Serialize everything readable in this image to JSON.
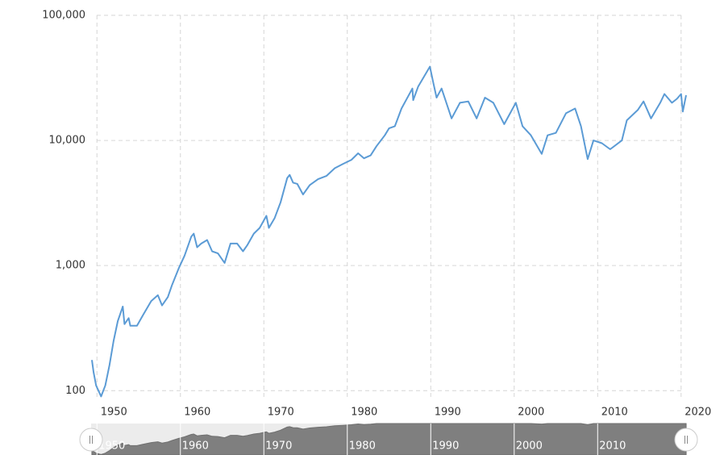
{
  "chart_data": {
    "type": "line",
    "log_scale": true,
    "grid": true,
    "xlim": [
      1949.3,
      2020.6
    ],
    "ylim": [
      84,
      100000
    ],
    "xticks": [
      1950,
      1960,
      1970,
      1980,
      1990,
      2000,
      2010,
      2020
    ],
    "yticks": [
      {
        "value": 100,
        "label": "100"
      },
      {
        "value": 1000,
        "label": "1,000"
      },
      {
        "value": 10000,
        "label": "10,000"
      },
      {
        "value": 100000,
        "label": "100,000"
      }
    ],
    "series": [
      {
        "color": "#5b9bd5",
        "x": [
          1949.4,
          1949.6,
          1949.9,
          1950.5,
          1951,
          1951.5,
          1952,
          1952.5,
          1953.1,
          1953.3,
          1953.8,
          1954,
          1954.8,
          1955.5,
          1956.5,
          1957.3,
          1957.8,
          1958.5,
          1959,
          1959.8,
          1960.5,
          1961.3,
          1961.6,
          1962,
          1962.5,
          1963.2,
          1963.8,
          1964.5,
          1965.3,
          1966,
          1966.8,
          1967.5,
          1968,
          1968.8,
          1969.5,
          1970.3,
          1970.6,
          1971.3,
          1972,
          1972.8,
          1973.1,
          1973.5,
          1974,
          1974.7,
          1975.5,
          1976.5,
          1977.5,
          1978.5,
          1979.5,
          1980.5,
          1981.3,
          1982,
          1982.8,
          1983.5,
          1984.5,
          1985,
          1985.7,
          1986.5,
          1987.8,
          1987.9,
          1988.5,
          1989.9,
          1990.3,
          1990.7,
          1991.3,
          1992.5,
          1993.5,
          1994.5,
          1995.5,
          1996.5,
          1997.5,
          1998.8,
          2000.2,
          2001,
          2002,
          2003.3,
          2004,
          2005,
          2006.2,
          2007.3,
          2008,
          2008.8,
          2009.5,
          2010.5,
          2011.5,
          2012.9,
          2013.5,
          2014.8,
          2015.5,
          2016.4,
          2017.5,
          2018,
          2018.9,
          2019.5,
          2020,
          2020.2,
          2020.6
        ],
        "values": [
          176,
          140,
          110,
          90,
          110,
          160,
          250,
          360,
          470,
          340,
          380,
          330,
          330,
          400,
          520,
          580,
          480,
          560,
          700,
          950,
          1200,
          1700,
          1800,
          1400,
          1500,
          1600,
          1300,
          1250,
          1050,
          1500,
          1500,
          1300,
          1450,
          1800,
          2000,
          2500,
          2000,
          2400,
          3200,
          5000,
          5300,
          4600,
          4500,
          3700,
          4400,
          4900,
          5200,
          6000,
          6500,
          7000,
          7900,
          7200,
          7600,
          9000,
          11000,
          12500,
          13000,
          18000,
          26000,
          21000,
          27000,
          38900,
          29000,
          22000,
          26000,
          15000,
          20000,
          20500,
          15000,
          22000,
          20000,
          13500,
          20000,
          13000,
          11000,
          7800,
          11000,
          11500,
          16500,
          18000,
          13000,
          7100,
          10000,
          9500,
          8500,
          10000,
          14500,
          17500,
          20500,
          15000,
          20000,
          23500,
          20000,
          21500,
          23500,
          17000,
          23000
        ]
      }
    ]
  }
}
